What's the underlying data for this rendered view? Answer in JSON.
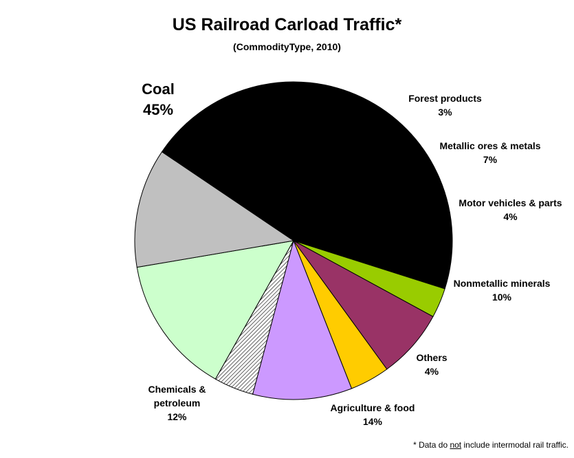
{
  "title": "US Railroad Carload Traffic*",
  "subtitle": "(CommodityType, 2010)",
  "footnote": {
    "before": "* Data do ",
    "emphasis": "not",
    "after": " include intermodal rail traffic."
  },
  "chart_data": {
    "type": "pie",
    "title": "US Railroad Carload Traffic*",
    "subtitle": "(CommodityType, 2010)",
    "slices": [
      {
        "label": "Coal",
        "value": 45,
        "display": "45%",
        "color": "#000000"
      },
      {
        "label": "Forest products",
        "value": 3,
        "display": "3%",
        "color": "#99cc00"
      },
      {
        "label": "Metallic ores & metals",
        "value": 7,
        "display": "7%",
        "color": "#993366"
      },
      {
        "label": "Motor vehicles & parts",
        "value": 4,
        "display": "4%",
        "color": "#ffcc00"
      },
      {
        "label": "Nonmetallic minerals",
        "value": 10,
        "display": "10%",
        "color": "#cc99ff"
      },
      {
        "label": "Others",
        "value": 4,
        "display": "4%",
        "color": "hatched"
      },
      {
        "label": "Agriculture & food",
        "value": 14,
        "display": "14%",
        "color": "#ccffcc"
      },
      {
        "label": "Chemicals & petroleum",
        "value": 12,
        "display": "12%",
        "color": "#c0c0c0"
      }
    ]
  }
}
